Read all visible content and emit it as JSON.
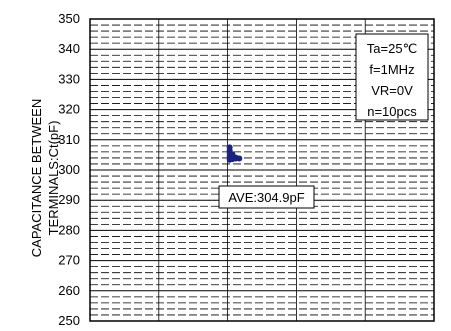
{
  "chart_data": {
    "type": "scatter",
    "ylabel_line1": "CAPACITANCE BETWEEN",
    "ylabel_line2": "TERMINALS:Ct(pF)",
    "xlabel": "",
    "ylim": [
      250,
      350
    ],
    "yticks": [
      250,
      260,
      270,
      280,
      290,
      300,
      310,
      320,
      330,
      340,
      350
    ],
    "grid": true,
    "grid_style": "dashed",
    "minor_grid_step": 2,
    "x_divisions": 5,
    "point_color": "#1a237e",
    "series": [
      {
        "x": [
          2.03,
          2.03,
          2.03,
          2.03,
          2.03,
          2.07,
          2.07,
          2.12,
          2.12,
          2.17
        ],
        "values": [
          307.5,
          306.5,
          305.5,
          304.5,
          303.4,
          305.2,
          303.6,
          304.1,
          303.8,
          303.8
        ]
      }
    ],
    "conditions": [
      "Ta=25℃",
      "f=1MHz",
      "VR=0V",
      "n=10pcs"
    ],
    "annotation": "AVE:304.9pF"
  }
}
